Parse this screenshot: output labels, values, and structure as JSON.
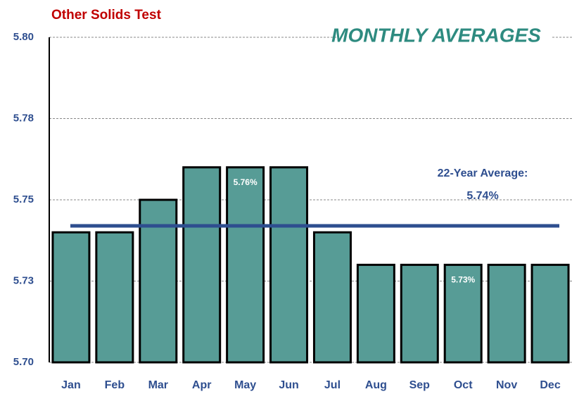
{
  "chart_data": {
    "type": "bar",
    "title": "Other Solids Test",
    "subtitle": "MONTHLY AVERAGES",
    "categories": [
      "Jan",
      "Feb",
      "Mar",
      "Apr",
      "May",
      "Jun",
      "Jul",
      "Aug",
      "Sep",
      "Oct",
      "Nov",
      "Dec"
    ],
    "values": [
      5.74,
      5.74,
      5.75,
      5.76,
      5.76,
      5.76,
      5.74,
      5.73,
      5.73,
      5.73,
      5.73,
      5.73
    ],
    "value_labels": [
      null,
      null,
      null,
      null,
      "5.76%",
      null,
      null,
      null,
      null,
      "5.73%",
      null,
      null
    ],
    "color": "#579c96",
    "ylim": [
      5.7,
      5.8
    ],
    "yticks": [
      {
        "value": 5.7,
        "label": "5.70"
      },
      {
        "value": 5.725,
        "label": "5.73"
      },
      {
        "value": 5.75,
        "label": "5.75"
      },
      {
        "value": 5.775,
        "label": "5.78"
      },
      {
        "value": 5.8,
        "label": "5.80"
      }
    ],
    "grid": true,
    "average": {
      "value": 5.742,
      "label": "22-Year Average:",
      "value_label": "5.74%",
      "color": "#2e4e8f"
    }
  }
}
